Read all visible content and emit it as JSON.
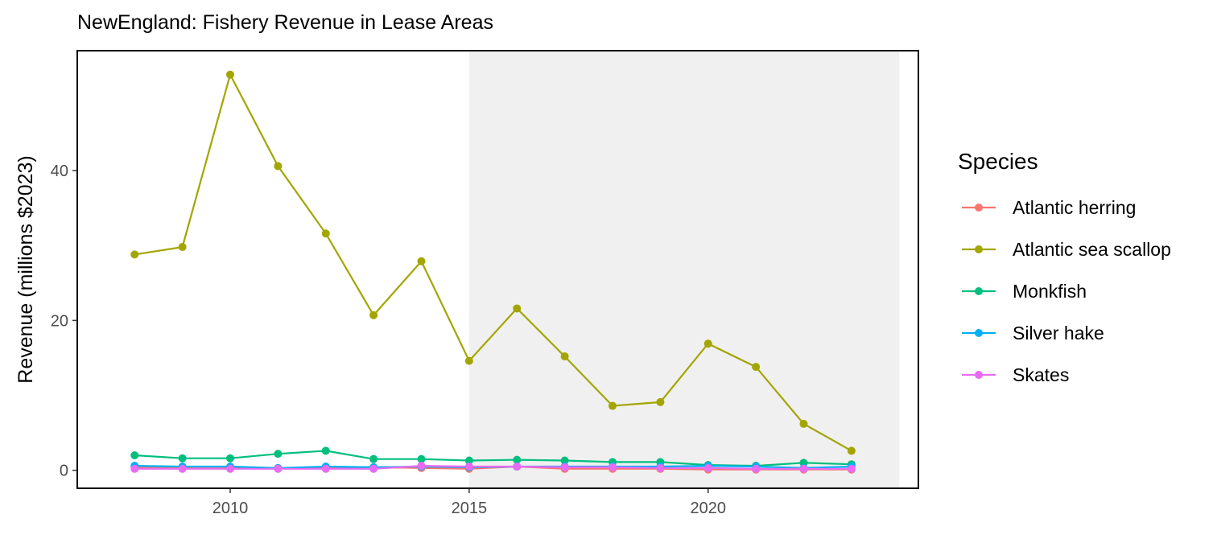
{
  "chart_data": {
    "type": "line",
    "title": "NewEngland: Fishery Revenue in Lease Areas",
    "xlabel": "",
    "ylabel": "Revenue (millions $2023)",
    "x": [
      2008,
      2009,
      2010,
      2011,
      2012,
      2013,
      2014,
      2015,
      2016,
      2017,
      2018,
      2019,
      2020,
      2021,
      2022,
      2023
    ],
    "xlim": [
      2006.8,
      2024.4
    ],
    "ylim": [
      -2.4,
      56
    ],
    "xticks": [
      2010,
      2015,
      2020
    ],
    "yticks": [
      0,
      20,
      40
    ],
    "shaded_region": {
      "x_start": 2015,
      "x_end": 2024,
      "color": "#f0f0f0"
    },
    "grid": false,
    "legend": {
      "title": "Species",
      "position": "right"
    },
    "series": [
      {
        "name": "Atlantic herring",
        "color": "#F8766D",
        "values": [
          0.4,
          0.4,
          0.4,
          0.3,
          0.4,
          0.4,
          0.3,
          0.2,
          0.5,
          0.2,
          0.2,
          0.2,
          0.1,
          0.1,
          0.1,
          0.1
        ]
      },
      {
        "name": "Atlantic sea scallop",
        "color": "#A3A500",
        "values": [
          28.8,
          29.8,
          52.8,
          40.6,
          31.6,
          20.7,
          27.9,
          14.6,
          21.6,
          15.2,
          8.6,
          9.1,
          16.9,
          13.8,
          6.2,
          2.6
        ]
      },
      {
        "name": "Monkfish",
        "color": "#00BF7D",
        "values": [
          2.0,
          1.6,
          1.6,
          2.2,
          2.6,
          1.5,
          1.5,
          1.3,
          1.4,
          1.3,
          1.1,
          1.1,
          0.7,
          0.6,
          1.0,
          0.8
        ]
      },
      {
        "name": "Silver hake",
        "color": "#00B0F6",
        "values": [
          0.6,
          0.5,
          0.5,
          0.3,
          0.5,
          0.4,
          0.5,
          0.4,
          0.5,
          0.5,
          0.5,
          0.5,
          0.6,
          0.5,
          0.3,
          0.5
        ]
      },
      {
        "name": "Skates",
        "color": "#E76BF3",
        "values": [
          0.2,
          0.2,
          0.2,
          0.2,
          0.2,
          0.2,
          0.6,
          0.5,
          0.5,
          0.4,
          0.4,
          0.3,
          0.3,
          0.2,
          0.2,
          0.2
        ]
      }
    ]
  }
}
